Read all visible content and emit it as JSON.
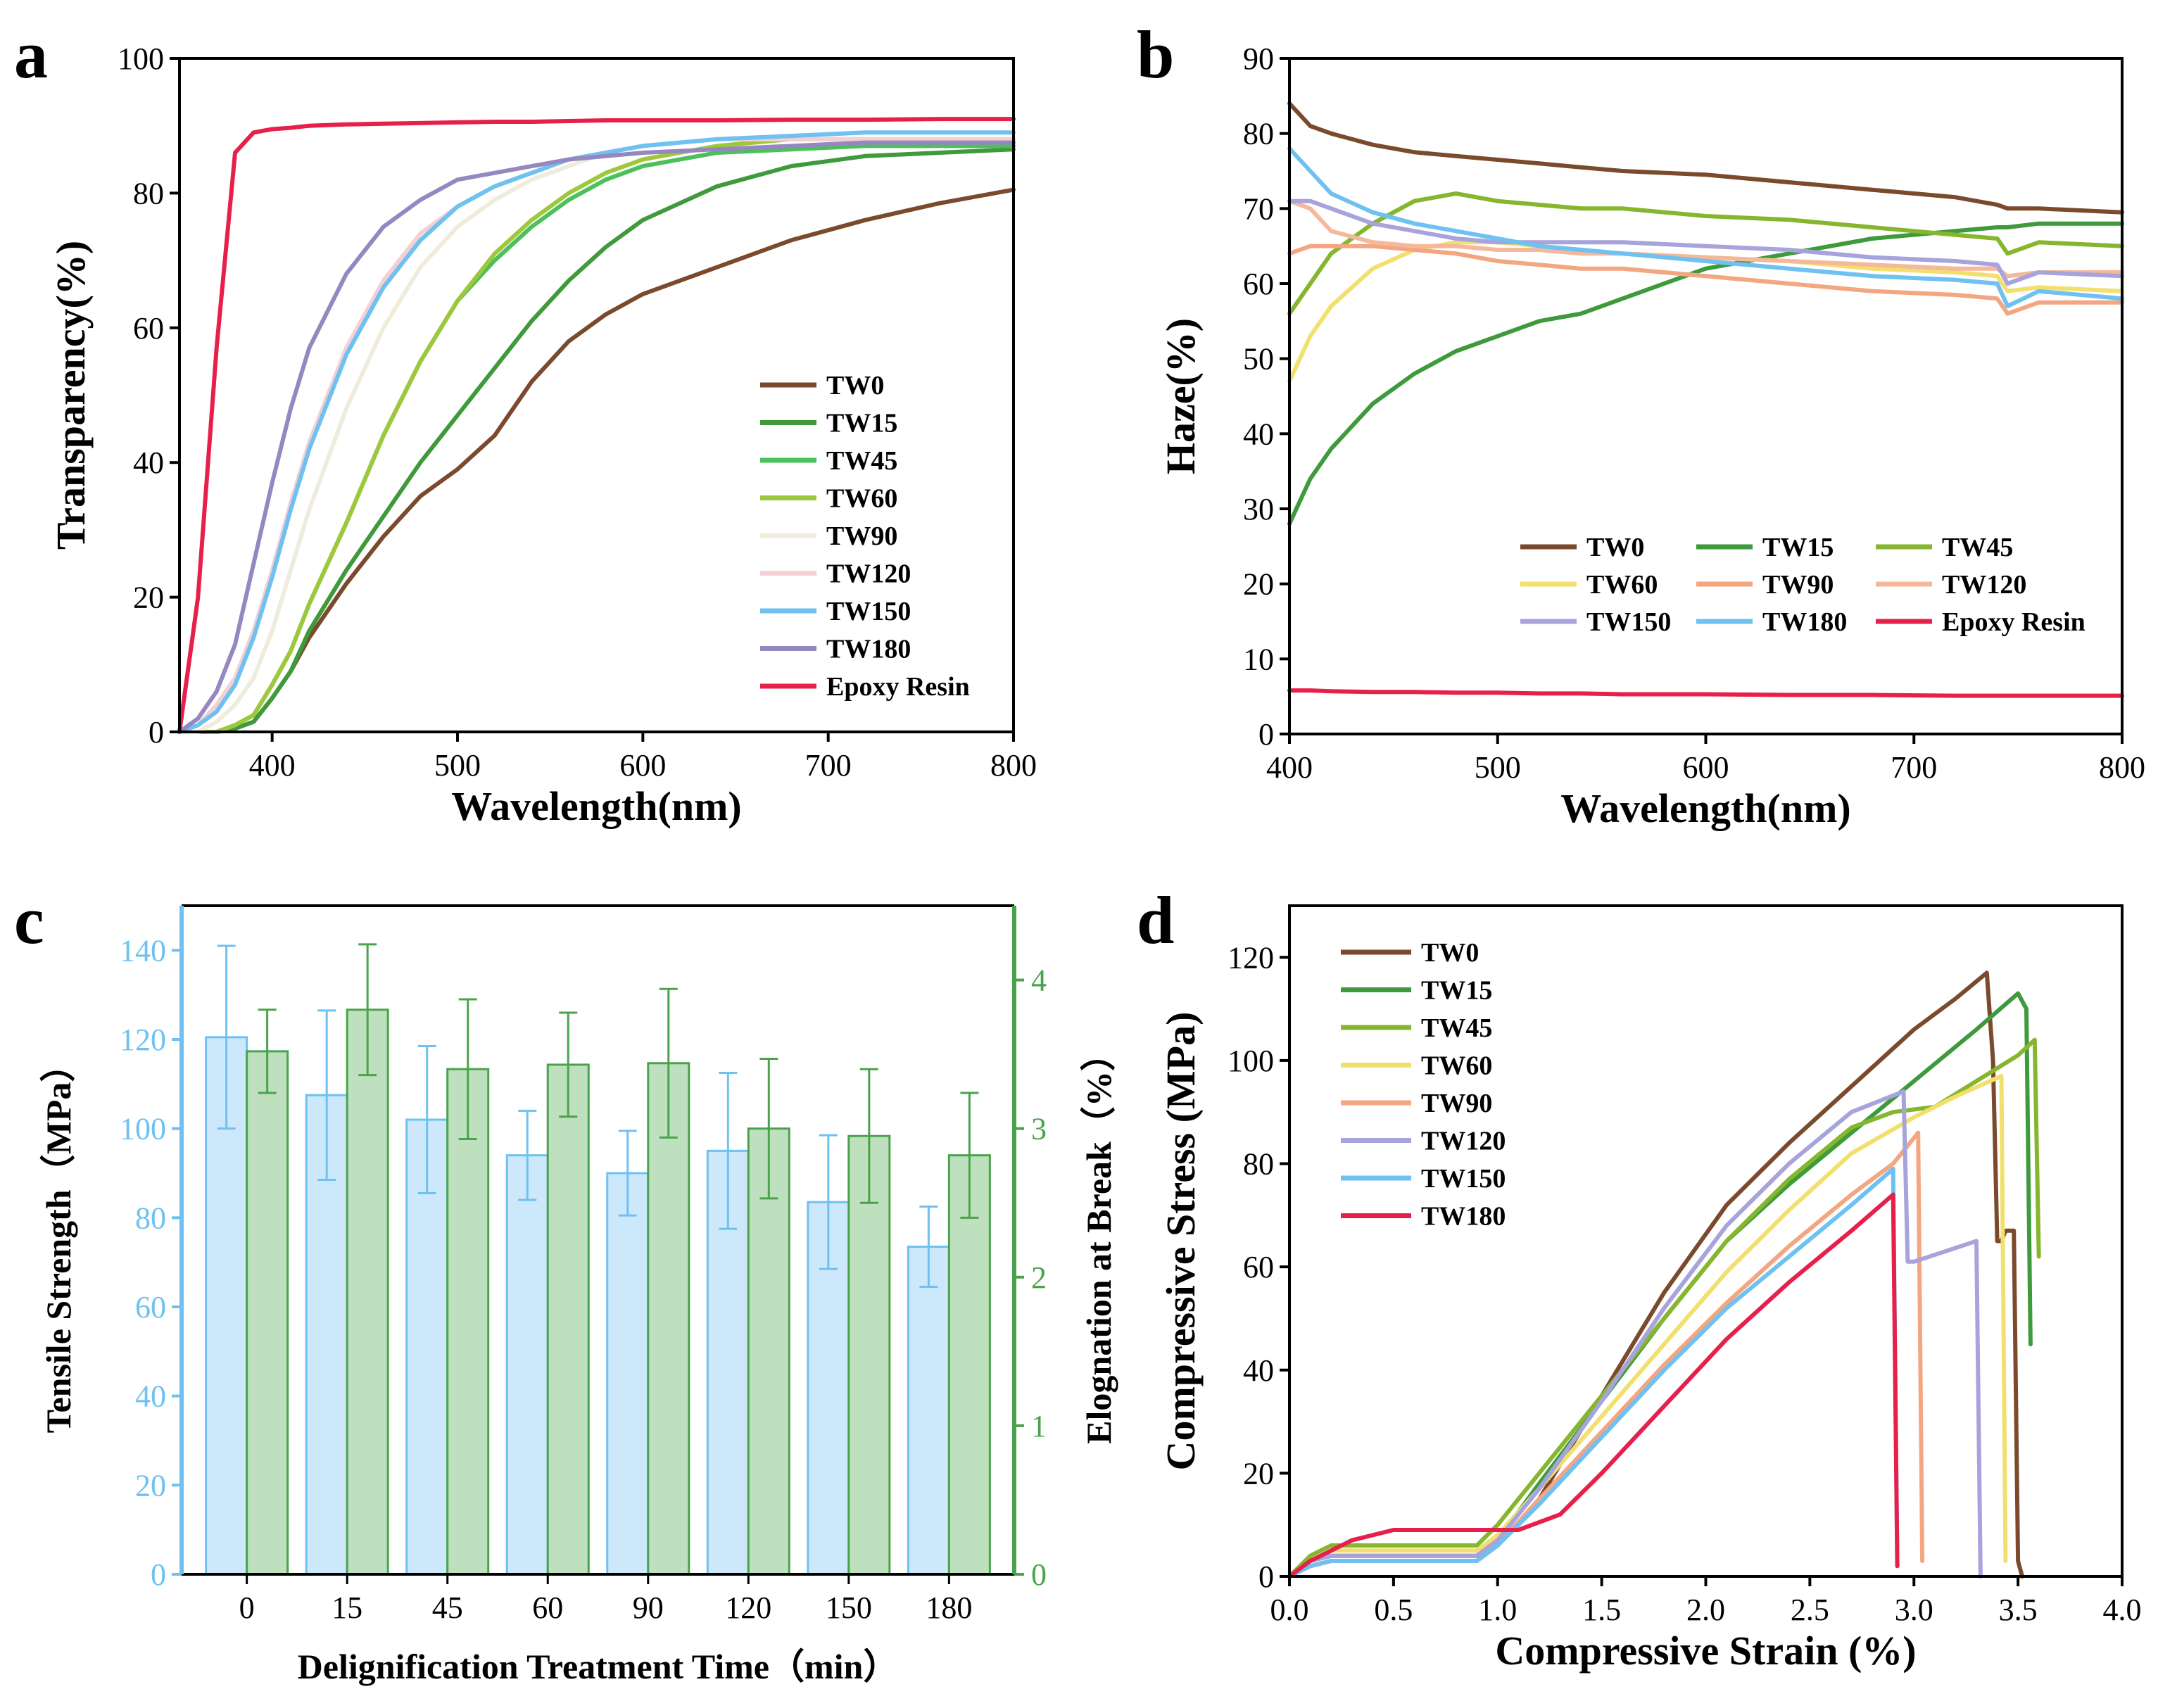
{
  "figure": {
    "panel_labels": [
      "a",
      "b",
      "c",
      "d"
    ]
  },
  "chart_data": [
    {
      "panel": "a",
      "type": "line",
      "xlabel": "Wavelength(nm)",
      "ylabel": "Transparency(%)",
      "xlim": [
        350,
        800
      ],
      "ylim": [
        0,
        100
      ],
      "xticks": [
        400,
        500,
        600,
        700,
        800
      ],
      "yticks": [
        0,
        20,
        40,
        60,
        80,
        100
      ],
      "legend_position": "bottom-right",
      "x": [
        350,
        360,
        370,
        380,
        390,
        400,
        410,
        420,
        440,
        460,
        480,
        500,
        520,
        540,
        560,
        580,
        600,
        640,
        680,
        720,
        760,
        800
      ],
      "series": [
        {
          "name": "TW0",
          "color": "#7b4a2d",
          "values": [
            0,
            0,
            0,
            0.5,
            1.5,
            5,
            9,
            14,
            22,
            29,
            35,
            39,
            44,
            52,
            58,
            62,
            65,
            69,
            73,
            76,
            78.5,
            80.5
          ]
        },
        {
          "name": "TW15",
          "color": "#3f9a3c",
          "values": [
            0,
            0,
            0,
            0.5,
            1.5,
            5,
            9,
            15,
            24,
            32,
            40,
            47,
            54,
            61,
            67,
            72,
            76,
            81,
            84,
            85.5,
            86,
            86.5
          ]
        },
        {
          "name": "TW45",
          "color": "#4cc05a",
          "values": [
            0,
            0,
            0,
            1,
            2.5,
            7,
            12,
            19,
            31,
            44,
            55,
            64,
            70,
            75,
            79,
            82,
            84,
            86,
            86.5,
            87,
            87,
            87
          ]
        },
        {
          "name": "TW60",
          "color": "#9dc83c",
          "values": [
            0,
            0,
            0,
            1,
            2.5,
            7,
            12,
            19,
            31,
            44,
            55,
            64,
            71,
            76,
            80,
            83,
            85,
            87,
            88,
            88,
            88,
            88
          ]
        },
        {
          "name": "TW90",
          "color": "#f0ecdc",
          "values": [
            0,
            0,
            1.5,
            4,
            8,
            15,
            24,
            33,
            48,
            60,
            69,
            75,
            79,
            82,
            84,
            86,
            87,
            88,
            88,
            88,
            88,
            88
          ]
        },
        {
          "name": "TW120",
          "color": "#f4cfd4",
          "values": [
            0,
            1,
            4,
            8,
            15,
            24,
            34,
            43,
            57,
            67,
            74,
            78,
            81,
            83,
            85,
            86,
            87,
            88,
            88,
            88,
            88,
            88
          ]
        },
        {
          "name": "TW150",
          "color": "#6ec1f0",
          "values": [
            0,
            1,
            3,
            7,
            14,
            23,
            33,
            42,
            56,
            66,
            73,
            78,
            81,
            83,
            85,
            86,
            87,
            88,
            88.5,
            89,
            89,
            89
          ]
        },
        {
          "name": "TW180",
          "color": "#9588c0",
          "values": [
            0,
            2,
            6,
            13,
            25,
            37,
            48,
            57,
            68,
            75,
            79,
            82,
            83,
            84,
            85,
            85.5,
            86,
            86.5,
            87,
            87.5,
            87.5,
            87.5
          ]
        },
        {
          "name": "Epoxy Resin",
          "color": "#e6204b",
          "values": [
            0,
            20,
            57,
            86,
            89,
            89.5,
            89.7,
            90,
            90.2,
            90.3,
            90.4,
            90.5,
            90.6,
            90.6,
            90.7,
            90.8,
            90.8,
            90.8,
            90.9,
            90.9,
            91,
            91
          ]
        }
      ]
    },
    {
      "panel": "b",
      "type": "line",
      "xlabel": "Wavelength(nm)",
      "ylabel": "Haze(%)",
      "xlim": [
        400,
        800
      ],
      "ylim": [
        0,
        90
      ],
      "xticks": [
        400,
        500,
        600,
        700,
        800
      ],
      "yticks": [
        0,
        10,
        20,
        30,
        40,
        50,
        60,
        70,
        80,
        90
      ],
      "legend_position": "center-right",
      "x": [
        400,
        410,
        420,
        440,
        460,
        480,
        500,
        520,
        540,
        560,
        600,
        640,
        680,
        720,
        740,
        745,
        760,
        800
      ],
      "series": [
        {
          "name": "TW0",
          "color": "#7b4a2d",
          "values": [
            84,
            81,
            80,
            78.5,
            77.5,
            77,
            76.5,
            76,
            75.5,
            75,
            74.5,
            73.5,
            72.5,
            71.5,
            70.5,
            70,
            70,
            69.5
          ]
        },
        {
          "name": "TW15",
          "color": "#3f9a3c",
          "values": [
            28,
            34,
            38,
            44,
            48,
            51,
            53,
            55,
            56,
            58,
            62,
            64,
            66,
            67,
            67.5,
            67.5,
            68,
            68
          ]
        },
        {
          "name": "TW45",
          "color": "#86b62e",
          "values": [
            56,
            60,
            64,
            68,
            71,
            72,
            71,
            70.5,
            70,
            70,
            69,
            68.5,
            67.5,
            66.5,
            66,
            64,
            65.5,
            65
          ]
        },
        {
          "name": "TW60",
          "color": "#f2e06e",
          "values": [
            47,
            53,
            57,
            62,
            64.5,
            65.5,
            65.5,
            65,
            64.5,
            64,
            63.5,
            63,
            62,
            61.5,
            61,
            59,
            59.5,
            59
          ]
        },
        {
          "name": "TW90",
          "color": "#f4a682",
          "values": [
            64,
            65,
            65,
            65,
            64.5,
            64,
            63,
            62.5,
            62,
            62,
            61,
            60,
            59,
            58.5,
            58,
            56,
            57.5,
            57.5
          ]
        },
        {
          "name": "TW120",
          "color": "#f4b89a",
          "values": [
            71,
            70,
            67,
            65.5,
            65,
            65,
            64.5,
            64.5,
            64,
            64,
            63.5,
            63,
            62.5,
            62,
            62,
            61,
            61.5,
            61.5
          ]
        },
        {
          "name": "TW150",
          "color": "#a7a3dc",
          "values": [
            71,
            71,
            70,
            68,
            67,
            66,
            65.5,
            65.5,
            65.5,
            65.5,
            65,
            64.5,
            63.5,
            63,
            62.5,
            60,
            61.5,
            61
          ]
        },
        {
          "name": "TW180",
          "color": "#6ec1f0",
          "values": [
            78,
            75,
            72,
            69.5,
            68,
            67,
            66,
            65,
            64.5,
            64,
            63,
            62,
            61,
            60.5,
            60,
            57,
            59,
            58
          ]
        },
        {
          "name": "Epoxy Resin",
          "color": "#e6204b",
          "values": [
            5.8,
            5.8,
            5.7,
            5.6,
            5.6,
            5.5,
            5.5,
            5.4,
            5.4,
            5.3,
            5.3,
            5.2,
            5.2,
            5.1,
            5.1,
            5.1,
            5.1,
            5.1
          ]
        }
      ]
    },
    {
      "panel": "c",
      "type": "bar",
      "xlabel": "Delignification Treatment Time（min）",
      "ylabel_left": "Tensile Strength（MPa）",
      "ylabel_right": "Elognation at Break（%）",
      "categories": [
        "0",
        "15",
        "45",
        "60",
        "90",
        "120",
        "150",
        "180"
      ],
      "ylim_left": [
        0,
        150
      ],
      "yticks_left": [
        0,
        20,
        40,
        60,
        80,
        100,
        120,
        140
      ],
      "ylim_right": [
        0,
        4.5
      ],
      "yticks_right": [
        0,
        1,
        2,
        3,
        4
      ],
      "series": [
        {
          "name": "Tensile Strength",
          "axis": "left",
          "color": "#6ec1f0",
          "fill": "#cde8fb",
          "values": [
            120.5,
            107.5,
            102,
            94,
            90,
            95,
            83.5,
            73.5
          ],
          "errors": [
            20.5,
            19,
            16.5,
            10,
            9.5,
            17.5,
            15,
            9
          ]
        },
        {
          "name": "Elognation at Break",
          "axis": "right",
          "color": "#4aa34c",
          "fill": "#bfe0bf",
          "values": [
            3.52,
            3.8,
            3.4,
            3.43,
            3.44,
            3.0,
            2.95,
            2.82
          ],
          "errors": [
            0.28,
            0.44,
            0.47,
            0.35,
            0.5,
            0.47,
            0.45,
            0.42
          ]
        }
      ]
    },
    {
      "panel": "d",
      "type": "line",
      "xlabel": "Compressive Strain (%)",
      "ylabel": "Compressive Stress (MPa)",
      "xlim": [
        0,
        4.0
      ],
      "ylim": [
        0,
        130
      ],
      "xticks": [
        0.0,
        0.5,
        1.0,
        1.5,
        2.0,
        2.5,
        3.0,
        3.5,
        4.0
      ],
      "yticks": [
        0,
        20,
        40,
        60,
        80,
        100,
        120
      ],
      "legend_position": "top-left",
      "series": [
        {
          "name": "TW0",
          "color": "#7b4a2d",
          "x": [
            0,
            0.1,
            0.2,
            0.9,
            1.0,
            1.2,
            1.5,
            1.8,
            2.1,
            2.4,
            2.7,
            3.0,
            3.2,
            3.35,
            3.38,
            3.4,
            3.42,
            3.44,
            3.48,
            3.5,
            3.52
          ],
          "y": [
            0,
            2,
            3,
            3,
            6,
            15,
            35,
            55,
            72,
            84,
            95,
            106,
            112,
            117,
            100,
            65,
            65,
            67,
            67,
            3,
            0
          ]
        },
        {
          "name": "TW15",
          "color": "#3f9a3c",
          "x": [
            0,
            0.1,
            0.2,
            0.9,
            1.0,
            1.2,
            1.5,
            1.8,
            2.1,
            2.4,
            2.7,
            3.0,
            3.3,
            3.5,
            3.54,
            3.56
          ],
          "y": [
            0,
            3,
            4,
            4,
            7,
            18,
            34,
            50,
            65,
            76,
            86,
            96,
            106,
            113,
            110,
            45
          ]
        },
        {
          "name": "TW45",
          "color": "#86b62e",
          "x": [
            0,
            0.1,
            0.2,
            0.9,
            1.0,
            1.2,
            1.5,
            1.8,
            2.1,
            2.4,
            2.7,
            2.9,
            3.1,
            3.3,
            3.5,
            3.58,
            3.6
          ],
          "y": [
            0,
            4,
            6,
            6,
            10,
            20,
            35,
            50,
            65,
            77,
            87,
            90,
            91,
            96,
            101,
            104,
            62
          ]
        },
        {
          "name": "TW60",
          "color": "#f2e06e",
          "x": [
            0,
            0.1,
            0.2,
            0.9,
            1.0,
            1.2,
            1.5,
            1.8,
            2.1,
            2.4,
            2.7,
            3.0,
            3.2,
            3.42,
            3.44
          ],
          "y": [
            0,
            3,
            5,
            5,
            8,
            17,
            31,
            45,
            59,
            71,
            82,
            89,
            93,
            97,
            3
          ]
        },
        {
          "name": "TW90",
          "color": "#f4a682",
          "x": [
            0,
            0.1,
            0.2,
            0.9,
            1.0,
            1.2,
            1.5,
            1.8,
            2.1,
            2.4,
            2.7,
            2.9,
            3.02,
            3.04
          ],
          "y": [
            0,
            2,
            3,
            3,
            6,
            15,
            28,
            41,
            53,
            64,
            74,
            80,
            86,
            3
          ]
        },
        {
          "name": "TW120",
          "color": "#a7a3dc",
          "x": [
            0,
            0.1,
            0.2,
            0.9,
            1.0,
            1.2,
            1.5,
            1.8,
            2.1,
            2.4,
            2.7,
            2.95,
            2.97,
            3.0,
            3.3,
            3.32
          ],
          "y": [
            0,
            3,
            4,
            4,
            7,
            17,
            34,
            52,
            68,
            80,
            90,
            94,
            61,
            61,
            65,
            0
          ]
        },
        {
          "name": "TW150",
          "color": "#6ec1f0",
          "x": [
            0,
            0.1,
            0.2,
            0.9,
            1.0,
            1.2,
            1.5,
            1.8,
            2.1,
            2.4,
            2.7,
            2.9,
            2.92
          ],
          "y": [
            0,
            2,
            3,
            3,
            6,
            14,
            27,
            40,
            52,
            62,
            72,
            79,
            2
          ]
        },
        {
          "name": "TW180",
          "color": "#e6204b",
          "x": [
            0,
            0.1,
            0.3,
            0.5,
            0.9,
            1.1,
            1.3,
            1.5,
            1.8,
            2.1,
            2.4,
            2.7,
            2.9,
            2.92
          ],
          "y": [
            0,
            3,
            7,
            9,
            9,
            9,
            12,
            20,
            33,
            46,
            57,
            67,
            74,
            2
          ]
        }
      ]
    }
  ]
}
